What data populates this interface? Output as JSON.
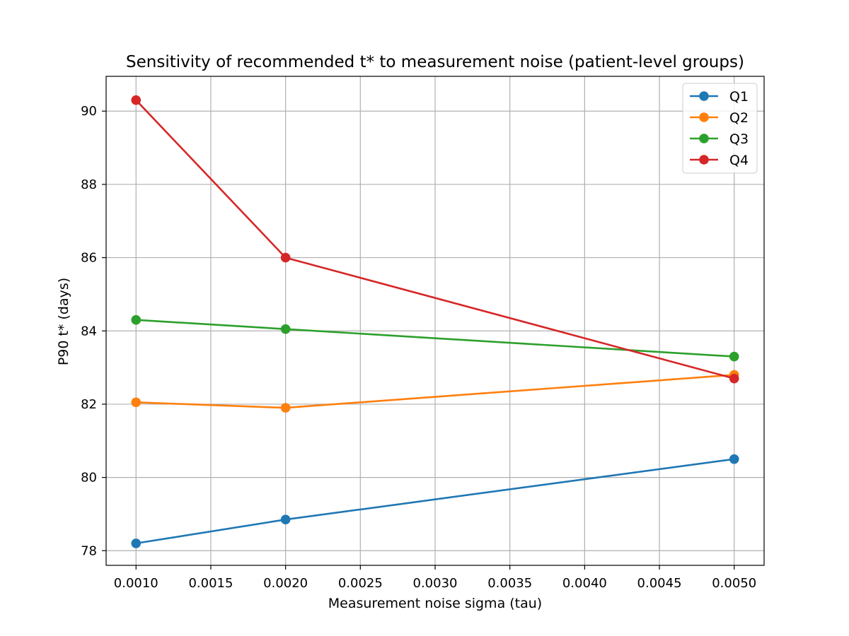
{
  "chart_data": {
    "type": "line",
    "title": "Sensitivity of recommended t* to measurement noise (patient-level groups)",
    "xlabel": "Measurement noise sigma (tau)",
    "ylabel": "P90 t* (days)",
    "x": [
      0.001,
      0.002,
      0.005
    ],
    "xlim": [
      0.0008,
      0.0052
    ],
    "ylim": [
      77.6,
      90.95
    ],
    "xticks": [
      "0.0010",
      "0.0015",
      "0.0020",
      "0.0025",
      "0.0030",
      "0.0035",
      "0.0040",
      "0.0045",
      "0.0050"
    ],
    "xtick_values": [
      0.001,
      0.0015,
      0.002,
      0.0025,
      0.003,
      0.0035,
      0.004,
      0.0045,
      0.005
    ],
    "yticks": [
      "78",
      "80",
      "82",
      "84",
      "86",
      "88",
      "90"
    ],
    "ytick_values": [
      78,
      80,
      82,
      84,
      86,
      88,
      90
    ],
    "grid": true,
    "legend_position": "top-right",
    "series": [
      {
        "name": "Q1",
        "color": "#1f77b4",
        "values": [
          78.2,
          78.85,
          80.5
        ]
      },
      {
        "name": "Q2",
        "color": "#ff7f0e",
        "values": [
          82.05,
          81.9,
          82.8
        ]
      },
      {
        "name": "Q3",
        "color": "#2ca02c",
        "values": [
          84.3,
          84.05,
          83.3
        ]
      },
      {
        "name": "Q4",
        "color": "#d62728",
        "values": [
          90.3,
          86.0,
          82.7
        ]
      }
    ]
  }
}
